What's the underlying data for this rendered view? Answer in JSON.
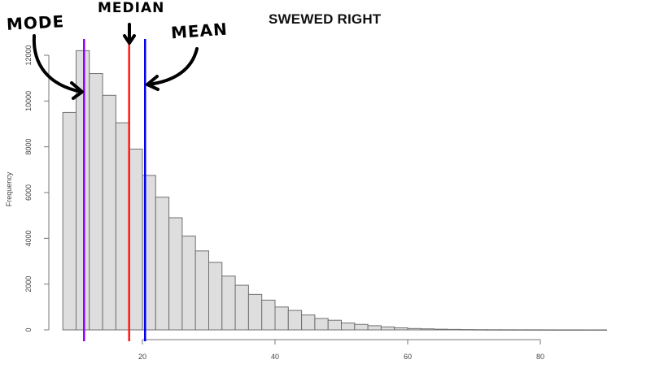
{
  "chart_data": {
    "type": "bar",
    "subtype": "histogram",
    "title": "SWEWED RIGHT",
    "xlabel": "",
    "ylabel": "Frequency",
    "xlim": [
      8,
      90
    ],
    "ylim": [
      0,
      12000
    ],
    "x_ticks": [
      20,
      40,
      60,
      80
    ],
    "y_ticks": [
      0,
      2000,
      4000,
      6000,
      8000,
      10000,
      12000
    ],
    "grid": false,
    "bin_width": 2,
    "bin_start": 8,
    "categories": [
      "8-10",
      "10-12",
      "12-14",
      "14-16",
      "16-18",
      "18-20",
      "20-22",
      "22-24",
      "24-26",
      "26-28",
      "28-30",
      "30-32",
      "32-34",
      "34-36",
      "36-38",
      "38-40",
      "40-42",
      "42-44",
      "44-46",
      "46-48",
      "48-50",
      "50-52",
      "52-54",
      "54-56",
      "56-58",
      "58-60",
      "60-62",
      "62-64",
      "64-66",
      "66-68",
      "68-70",
      "70-72",
      "72-74",
      "74-76",
      "76-78",
      "78-80",
      "80-82",
      "82-84",
      "84-86",
      "86-88",
      "88-90"
    ],
    "values": [
      9500,
      12200,
      11200,
      10250,
      9050,
      7900,
      6750,
      5800,
      4900,
      4100,
      3450,
      2950,
      2350,
      1950,
      1550,
      1300,
      1000,
      850,
      650,
      500,
      420,
      300,
      240,
      180,
      130,
      90,
      60,
      45,
      30,
      22,
      15,
      10,
      8,
      6,
      5,
      4,
      3,
      2,
      2,
      1,
      1
    ],
    "bar_fill": "#dedede",
    "bar_stroke": "#707070",
    "reference_lines": [
      {
        "name": "Mode",
        "x": 11.2,
        "color": "#8b00ff"
      },
      {
        "name": "Median",
        "x": 18.0,
        "color": "#ff1a1a"
      },
      {
        "name": "Mean",
        "x": 20.4,
        "color": "#0000ee"
      }
    ],
    "annotations": [
      {
        "text": "MODE",
        "target": "Mode"
      },
      {
        "text": "MEDIAN",
        "target": "Median"
      },
      {
        "text": "MEAN",
        "target": "Mean"
      }
    ]
  },
  "labels": {
    "title": "SWEWED RIGHT",
    "ylabel": "Frequency",
    "mode": "MODE",
    "median": "MEDIAN",
    "mean": "MEAN"
  }
}
